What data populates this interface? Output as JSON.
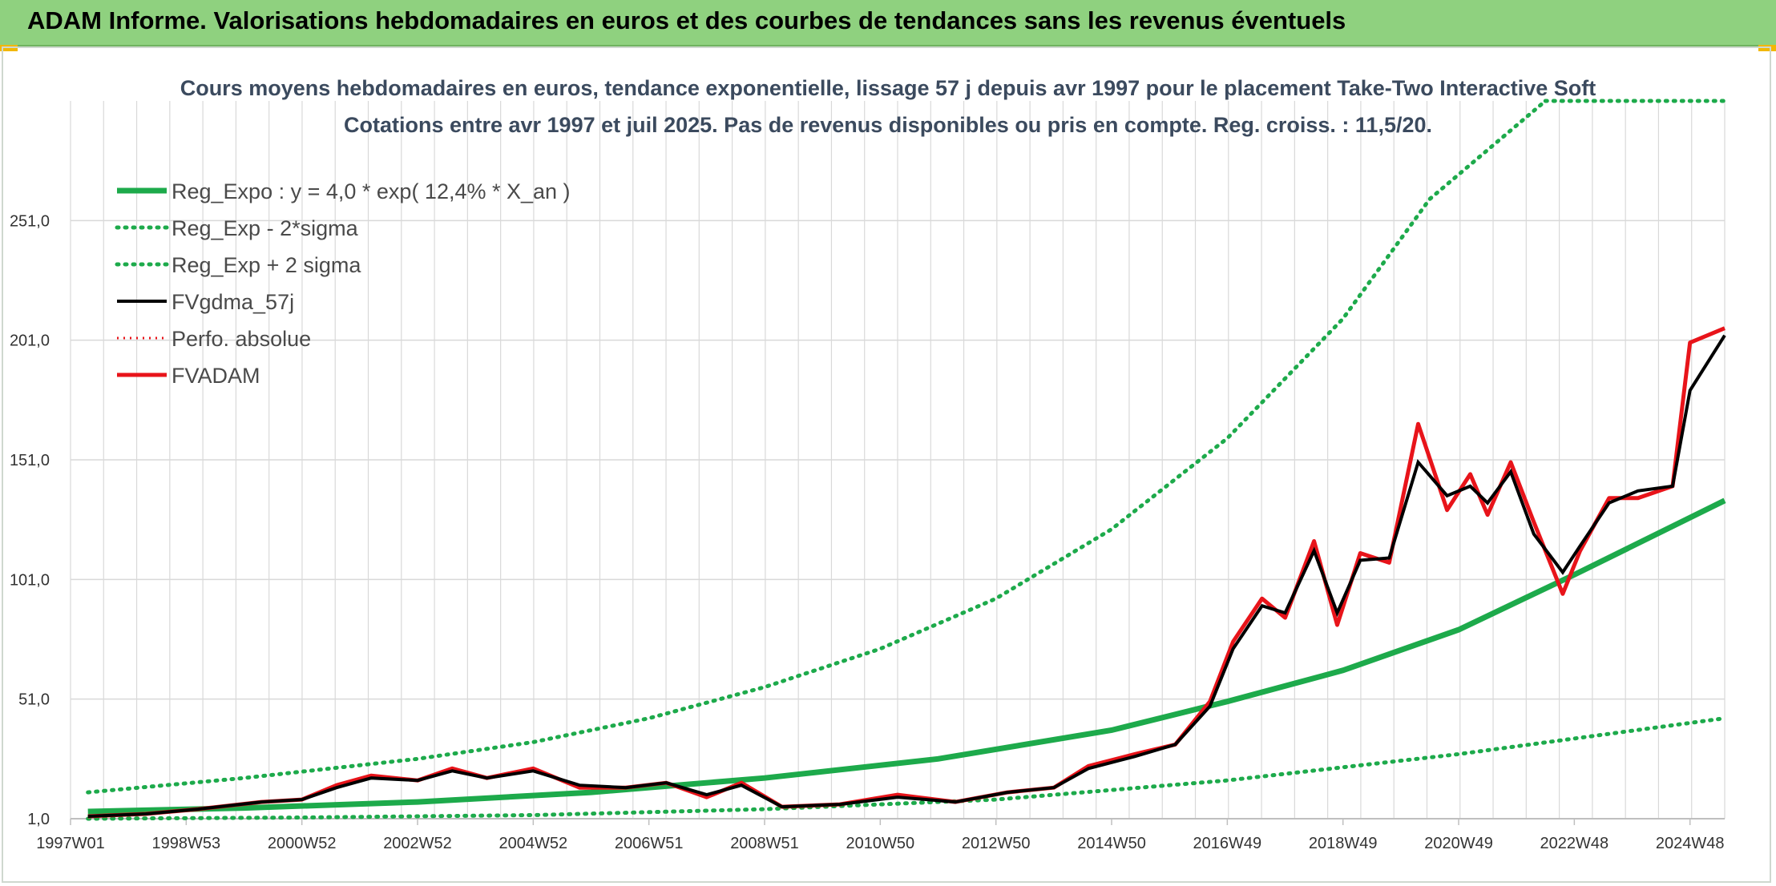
{
  "header": {
    "title": "ADAM Informe. Valorisations hebdomadaires en euros et des courbes de tendances sans les revenus éventuels"
  },
  "colors": {
    "header_bg": "#8fd17f",
    "green": "#1daa4b",
    "red": "#e8141a",
    "black": "#000000",
    "grid": "#d9d9d9"
  },
  "chart_data": {
    "type": "line",
    "title": "Cours moyens hebdomadaires en euros, tendance exponentielle, lissage 57 j depuis avr 1997 pour le placement Take-Two Interactive Soft",
    "subtitle": "Cotations entre avr 1997 et juil 2025. Pas de revenus disponibles ou pris en compte. Reg. croiss. : 11,5/20.",
    "xlabel": "",
    "ylabel": "",
    "x_range": [
      1997.0,
      2025.6
    ],
    "ylim": [
      1,
      301
    ],
    "y_ticks": [
      "1,0",
      "51,0",
      "101,0",
      "151,0",
      "201,0",
      "251,0"
    ],
    "y_tick_values": [
      1,
      51,
      101,
      151,
      201,
      251
    ],
    "x_ticks": [
      "1997W01",
      "1998W53",
      "2000W52",
      "2002W52",
      "2004W52",
      "2006W51",
      "2008W51",
      "2010W50",
      "2012W50",
      "2014W50",
      "2016W49",
      "2018W49",
      "2020W49",
      "2022W48",
      "2024W48"
    ],
    "x_tick_values": [
      1997.0,
      1999.0,
      2001.0,
      2003.0,
      2005.0,
      2007.0,
      2009.0,
      2011.0,
      2013.0,
      2015.0,
      2017.0,
      2019.0,
      2021.0,
      2023.0,
      2025.0
    ],
    "grid": true,
    "legend_position": "top-left",
    "series": [
      {
        "name": "Reg_Expo : y = 4,0 * exp( 12,4% *  X_an )",
        "style": "solid-green",
        "x": [
          1997.3,
          2000,
          2003,
          2006,
          2009,
          2012,
          2015,
          2017,
          2019,
          2021,
          2023,
          2025.6
        ],
        "y": [
          4,
          5.5,
          8,
          12,
          18,
          26,
          38,
          50,
          63,
          80,
          103,
          134
        ]
      },
      {
        "name": "Reg_Exp - 2*sigma",
        "style": "dotted-green",
        "x": [
          1997.3,
          2001,
          2005,
          2009,
          2013,
          2017,
          2021,
          2025.6
        ],
        "y": [
          1,
          1.5,
          2.5,
          5,
          9,
          17,
          28,
          43
        ]
      },
      {
        "name": "Reg_Exp + 2 sigma",
        "style": "dotted-green",
        "x": [
          1997.3,
          2000,
          2003,
          2005,
          2007,
          2009,
          2011,
          2013,
          2015,
          2017,
          2019,
          2020.5,
          2022.5
        ],
        "y": [
          12,
          18,
          26,
          33,
          43,
          56,
          72,
          93,
          122,
          160,
          210,
          260,
          301
        ]
      },
      {
        "name": "FVgdma_57j",
        "style": "solid-black",
        "x": [
          1997.3,
          1998.3,
          1999.2,
          2000.3,
          2001.0,
          2001.6,
          2002.2,
          2003.0,
          2003.6,
          2004.2,
          2005.0,
          2005.8,
          2006.6,
          2007.3,
          2008.0,
          2008.6,
          2009.3,
          2010.3,
          2011.3,
          2012.3,
          2013.2,
          2014.0,
          2014.6,
          2015.4,
          2016.1,
          2016.7,
          2017.1,
          2017.6,
          2018.0,
          2018.5,
          2018.9,
          2019.3,
          2019.8,
          2020.3,
          2020.8,
          2021.2,
          2021.5,
          2021.9,
          2022.3,
          2022.8,
          2023.1,
          2023.6,
          2024.1,
          2024.7,
          2025.0,
          2025.6
        ],
        "y": [
          2,
          3,
          5,
          8,
          9,
          14,
          18,
          17,
          21,
          18,
          21,
          15,
          14,
          16,
          11,
          15,
          6,
          7,
          10,
          8,
          12,
          14,
          22,
          27,
          32,
          48,
          72,
          90,
          87,
          113,
          87,
          109,
          110,
          150,
          136,
          140,
          133,
          146,
          120,
          104,
          115,
          133,
          138,
          140,
          180,
          203
        ]
      },
      {
        "name": "Perfo. absolue",
        "style": "dotted-red",
        "x": [],
        "y": []
      },
      {
        "name": "FVADAM",
        "style": "solid-red",
        "x": [
          1997.3,
          1998.3,
          1999.2,
          2000.3,
          2001.0,
          2001.6,
          2002.2,
          2003.0,
          2003.6,
          2004.2,
          2005.0,
          2005.8,
          2006.6,
          2007.3,
          2008.0,
          2008.6,
          2009.3,
          2010.3,
          2011.3,
          2012.3,
          2013.2,
          2014.0,
          2014.6,
          2015.4,
          2016.1,
          2016.7,
          2017.1,
          2017.6,
          2018.0,
          2018.5,
          2018.9,
          2019.3,
          2019.8,
          2020.3,
          2020.8,
          2021.2,
          2021.5,
          2021.9,
          2022.3,
          2022.8,
          2023.1,
          2023.6,
          2024.1,
          2024.7,
          2025.0,
          2025.6
        ],
        "y": [
          2,
          3,
          5,
          8,
          9,
          15,
          19,
          17,
          22,
          18,
          22,
          14,
          14,
          16,
          10,
          16,
          6,
          7,
          11,
          8,
          12,
          14,
          23,
          28,
          32,
          50,
          75,
          93,
          85,
          117,
          82,
          112,
          108,
          166,
          130,
          145,
          128,
          150,
          125,
          95,
          113,
          135,
          135,
          140,
          200,
          206
        ]
      }
    ]
  }
}
